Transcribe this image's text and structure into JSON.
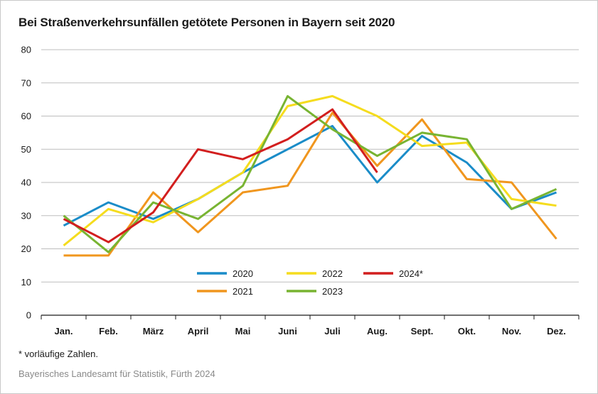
{
  "chart_data": {
    "type": "line",
    "title": "Bei Straßenverkehrsunfällen getötete Personen in Bayern seit 2020",
    "categories": [
      "Jan.",
      "Feb.",
      "März",
      "April",
      "Mai",
      "Juni",
      "Juli",
      "Aug.",
      "Sept.",
      "Okt.",
      "Nov.",
      "Dez."
    ],
    "ylim": [
      0,
      80
    ],
    "yticks": [
      0,
      10,
      20,
      30,
      40,
      50,
      60,
      70,
      80
    ],
    "grid": true,
    "legend_position": "center-bottom",
    "series": [
      {
        "name": "2020",
        "color": "#1a8cc8",
        "values": [
          27,
          34,
          29,
          35,
          43,
          50,
          57,
          40,
          54,
          46,
          32,
          37
        ]
      },
      {
        "name": "2021",
        "color": "#f0961e",
        "values": [
          18,
          18,
          37,
          25,
          37,
          39,
          61,
          45,
          59,
          41,
          40,
          23
        ]
      },
      {
        "name": "2022",
        "color": "#f5dc1e",
        "values": [
          21,
          32,
          28,
          35,
          43,
          63,
          66,
          60,
          51,
          52,
          35,
          33
        ]
      },
      {
        "name": "2023",
        "color": "#78b432",
        "values": [
          30,
          19,
          34,
          29,
          39,
          66,
          56,
          48,
          55,
          53,
          32,
          38
        ]
      },
      {
        "name": "2024*",
        "color": "#d21e1e",
        "values": [
          29,
          22,
          31,
          50,
          47,
          53,
          62,
          43,
          null,
          null,
          null,
          null
        ]
      }
    ]
  },
  "footnote": "* vorläufige Zahlen.",
  "source": "Bayerisches Landesamt für Statistik, Fürth 2024"
}
